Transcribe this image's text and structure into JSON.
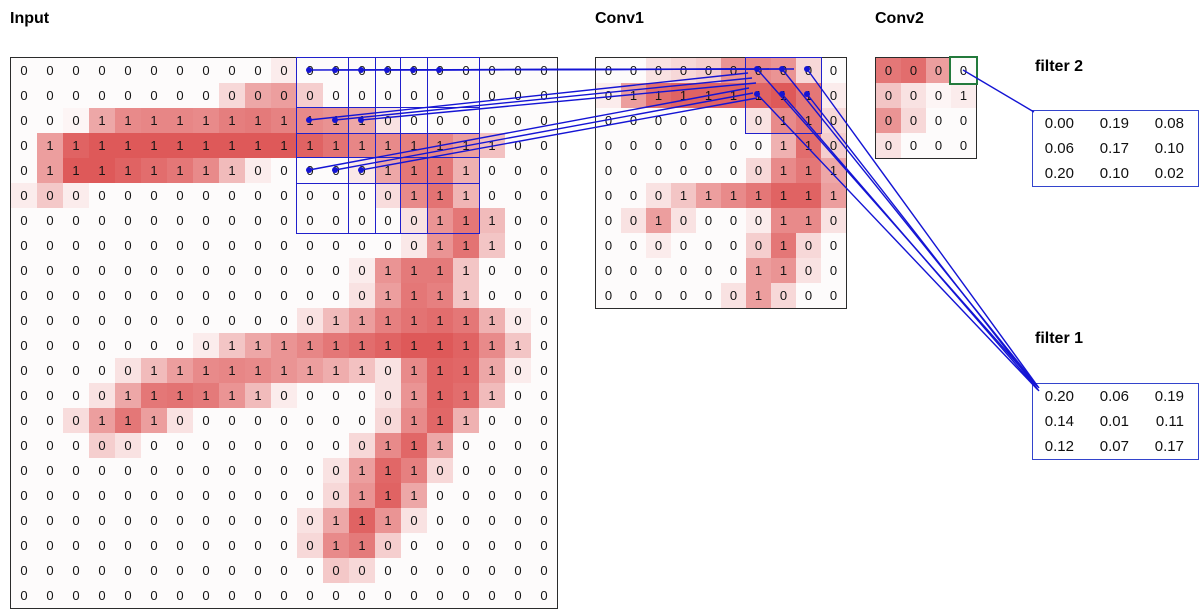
{
  "titles": {
    "input": "Input",
    "conv1": "Conv1",
    "conv2": "Conv2"
  },
  "filters": {
    "filter1": {
      "label": "filter 1",
      "rows": [
        [
          "0.20",
          "0.06",
          "0.19"
        ],
        [
          "0.14",
          "0.01",
          "0.11"
        ],
        [
          "0.12",
          "0.07",
          "0.17"
        ]
      ]
    },
    "filter2": {
      "label": "filter 2",
      "rows": [
        [
          "0.00",
          "0.19",
          "0.08"
        ],
        [
          "0.06",
          "0.17",
          "0.10"
        ],
        [
          "0.20",
          "0.10",
          "0.02"
        ]
      ]
    }
  },
  "colors": {
    "cell_red_base": "#d83c3c",
    "connection_blue": "#1414d4",
    "receptive_box_blue": "#2020cc",
    "selected_cell_green": "#237a3c"
  },
  "grids": {
    "input": {
      "rows": 22,
      "cols": 21,
      "values": [
        [
          0,
          0,
          0,
          0,
          0,
          0,
          0,
          0,
          0,
          0,
          0,
          0,
          0,
          0,
          0,
          0,
          0,
          0,
          0,
          0,
          0
        ],
        [
          0,
          0,
          0,
          0,
          0,
          0,
          0,
          0,
          0,
          0,
          0,
          0,
          0,
          0,
          0,
          0,
          0,
          0,
          0,
          0,
          0
        ],
        [
          0,
          0,
          0,
          1,
          1,
          1,
          1,
          1,
          1,
          1,
          1,
          1,
          1,
          1,
          0,
          0,
          0,
          0,
          0,
          0,
          0
        ],
        [
          0,
          1,
          1,
          1,
          1,
          1,
          1,
          1,
          1,
          1,
          1,
          1,
          1,
          1,
          1,
          1,
          1,
          1,
          1,
          0,
          0
        ],
        [
          0,
          1,
          1,
          1,
          1,
          1,
          1,
          1,
          1,
          0,
          0,
          0,
          0,
          0,
          1,
          1,
          1,
          1,
          0,
          0,
          0
        ],
        [
          0,
          0,
          0,
          0,
          0,
          0,
          0,
          0,
          0,
          0,
          0,
          0,
          0,
          0,
          0,
          1,
          1,
          1,
          0,
          0,
          0
        ],
        [
          0,
          0,
          0,
          0,
          0,
          0,
          0,
          0,
          0,
          0,
          0,
          0,
          0,
          0,
          0,
          0,
          1,
          1,
          1,
          0,
          0
        ],
        [
          0,
          0,
          0,
          0,
          0,
          0,
          0,
          0,
          0,
          0,
          0,
          0,
          0,
          0,
          0,
          0,
          1,
          1,
          1,
          0,
          0
        ],
        [
          0,
          0,
          0,
          0,
          0,
          0,
          0,
          0,
          0,
          0,
          0,
          0,
          0,
          0,
          1,
          1,
          1,
          1,
          0,
          0,
          0
        ],
        [
          0,
          0,
          0,
          0,
          0,
          0,
          0,
          0,
          0,
          0,
          0,
          0,
          0,
          0,
          1,
          1,
          1,
          1,
          0,
          0,
          0
        ],
        [
          0,
          0,
          0,
          0,
          0,
          0,
          0,
          0,
          0,
          0,
          0,
          0,
          1,
          1,
          1,
          1,
          1,
          1,
          1,
          0,
          0
        ],
        [
          0,
          0,
          0,
          0,
          0,
          0,
          0,
          0,
          1,
          1,
          1,
          1,
          1,
          1,
          1,
          1,
          1,
          1,
          1,
          1,
          0
        ],
        [
          0,
          0,
          0,
          0,
          0,
          1,
          1,
          1,
          1,
          1,
          1,
          1,
          1,
          1,
          0,
          1,
          1,
          1,
          1,
          0,
          0
        ],
        [
          0,
          0,
          0,
          0,
          1,
          1,
          1,
          1,
          1,
          1,
          0,
          0,
          0,
          0,
          0,
          1,
          1,
          1,
          1,
          0,
          0
        ],
        [
          0,
          0,
          0,
          1,
          1,
          1,
          0,
          0,
          0,
          0,
          0,
          0,
          0,
          0,
          0,
          1,
          1,
          1,
          0,
          0,
          0
        ],
        [
          0,
          0,
          0,
          0,
          0,
          0,
          0,
          0,
          0,
          0,
          0,
          0,
          0,
          0,
          1,
          1,
          1,
          0,
          0,
          0,
          0
        ],
        [
          0,
          0,
          0,
          0,
          0,
          0,
          0,
          0,
          0,
          0,
          0,
          0,
          0,
          1,
          1,
          1,
          0,
          0,
          0,
          0,
          0
        ],
        [
          0,
          0,
          0,
          0,
          0,
          0,
          0,
          0,
          0,
          0,
          0,
          0,
          0,
          1,
          1,
          1,
          0,
          0,
          0,
          0,
          0
        ],
        [
          0,
          0,
          0,
          0,
          0,
          0,
          0,
          0,
          0,
          0,
          0,
          0,
          1,
          1,
          1,
          0,
          0,
          0,
          0,
          0,
          0
        ],
        [
          0,
          0,
          0,
          0,
          0,
          0,
          0,
          0,
          0,
          0,
          0,
          0,
          1,
          1,
          0,
          0,
          0,
          0,
          0,
          0,
          0
        ],
        [
          0,
          0,
          0,
          0,
          0,
          0,
          0,
          0,
          0,
          0,
          0,
          0,
          0,
          0,
          0,
          0,
          0,
          0,
          0,
          0,
          0
        ],
        [
          0,
          0,
          0,
          0,
          0,
          0,
          0,
          0,
          0,
          0,
          0,
          0,
          0,
          0,
          0,
          0,
          0,
          0,
          0,
          0,
          0
        ]
      ],
      "intensity": [
        [
          0,
          0,
          0,
          0,
          0,
          0,
          0,
          0,
          0,
          0,
          0.1,
          0,
          0,
          0,
          0,
          0,
          0,
          0,
          0,
          0,
          0
        ],
        [
          0,
          0,
          0,
          0,
          0,
          0,
          0,
          0,
          0.2,
          0.45,
          0.5,
          0.25,
          0,
          0,
          0,
          0,
          0,
          0,
          0,
          0,
          0
        ],
        [
          0,
          0,
          0.05,
          0.45,
          0.6,
          0.62,
          0.62,
          0.6,
          0.66,
          0.68,
          0.64,
          0.6,
          0.56,
          0.45,
          0.15,
          0,
          0,
          0,
          0,
          0,
          0
        ],
        [
          0,
          0.5,
          0.8,
          0.85,
          0.85,
          0.85,
          0.85,
          0.85,
          0.85,
          0.85,
          0.85,
          0.8,
          0.72,
          0.62,
          0.6,
          0.65,
          0.62,
          0.5,
          0.32,
          0,
          0
        ],
        [
          0,
          0.5,
          0.85,
          0.85,
          0.8,
          0.75,
          0.7,
          0.6,
          0.35,
          0.1,
          0,
          0,
          0,
          0.12,
          0.45,
          0.7,
          0.7,
          0.4,
          0,
          0,
          0
        ],
        [
          0.1,
          0.28,
          0.1,
          0,
          0,
          0,
          0,
          0,
          0,
          0,
          0,
          0,
          0,
          0,
          0.18,
          0.6,
          0.72,
          0.38,
          0,
          0,
          0
        ],
        [
          0,
          0,
          0,
          0,
          0,
          0,
          0,
          0,
          0,
          0,
          0,
          0,
          0,
          0,
          0,
          0.15,
          0.55,
          0.7,
          0.35,
          0,
          0
        ],
        [
          0,
          0,
          0,
          0,
          0,
          0,
          0,
          0,
          0,
          0,
          0,
          0,
          0,
          0,
          0,
          0.12,
          0.55,
          0.72,
          0.3,
          0,
          0
        ],
        [
          0,
          0,
          0,
          0,
          0,
          0,
          0,
          0,
          0,
          0,
          0,
          0,
          0,
          0.1,
          0.55,
          0.68,
          0.68,
          0.3,
          0,
          0,
          0
        ],
        [
          0,
          0,
          0,
          0,
          0,
          0,
          0,
          0,
          0,
          0,
          0,
          0,
          0,
          0.15,
          0.5,
          0.7,
          0.65,
          0.3,
          0,
          0,
          0
        ],
        [
          0,
          0,
          0,
          0,
          0,
          0,
          0,
          0,
          0,
          0,
          0,
          0.15,
          0.35,
          0.5,
          0.65,
          0.72,
          0.75,
          0.7,
          0.4,
          0.1,
          0
        ],
        [
          0,
          0,
          0,
          0,
          0,
          0,
          0,
          0.1,
          0.3,
          0.45,
          0.55,
          0.62,
          0.7,
          0.75,
          0.8,
          0.85,
          0.85,
          0.8,
          0.6,
          0.3,
          0
        ],
        [
          0,
          0,
          0,
          0,
          0.15,
          0.35,
          0.5,
          0.6,
          0.62,
          0.6,
          0.55,
          0.5,
          0.42,
          0.32,
          0.15,
          0.6,
          0.8,
          0.78,
          0.45,
          0.1,
          0
        ],
        [
          0,
          0,
          0,
          0.15,
          0.45,
          0.7,
          0.72,
          0.68,
          0.55,
          0.35,
          0.1,
          0,
          0,
          0,
          0.15,
          0.55,
          0.8,
          0.75,
          0.35,
          0,
          0
        ],
        [
          0,
          0,
          0.18,
          0.5,
          0.7,
          0.5,
          0.15,
          0,
          0,
          0,
          0,
          0,
          0,
          0,
          0.2,
          0.6,
          0.78,
          0.4,
          0,
          0,
          0
        ],
        [
          0,
          0,
          0,
          0.25,
          0.15,
          0,
          0,
          0,
          0,
          0,
          0,
          0,
          0,
          0.2,
          0.6,
          0.78,
          0.45,
          0,
          0,
          0,
          0
        ],
        [
          0,
          0,
          0,
          0,
          0,
          0,
          0,
          0,
          0,
          0,
          0,
          0,
          0.15,
          0.5,
          0.78,
          0.65,
          0.2,
          0,
          0,
          0,
          0
        ],
        [
          0,
          0,
          0,
          0,
          0,
          0,
          0,
          0,
          0,
          0,
          0,
          0,
          0.2,
          0.55,
          0.8,
          0.45,
          0,
          0,
          0,
          0,
          0
        ],
        [
          0,
          0,
          0,
          0,
          0,
          0,
          0,
          0,
          0,
          0,
          0,
          0.15,
          0.45,
          0.8,
          0.55,
          0.15,
          0,
          0,
          0,
          0,
          0
        ],
        [
          0,
          0,
          0,
          0,
          0,
          0,
          0,
          0,
          0,
          0,
          0,
          0.2,
          0.6,
          0.68,
          0.25,
          0,
          0,
          0,
          0,
          0,
          0
        ],
        [
          0,
          0,
          0,
          0,
          0,
          0,
          0,
          0,
          0,
          0,
          0,
          0,
          0.28,
          0.2,
          0,
          0,
          0,
          0,
          0,
          0,
          0
        ],
        [
          0,
          0,
          0,
          0,
          0,
          0,
          0,
          0,
          0,
          0,
          0,
          0,
          0,
          0,
          0,
          0,
          0,
          0,
          0,
          0,
          0
        ]
      ]
    },
    "conv1": {
      "rows": 10,
      "cols": 10,
      "values": [
        [
          0,
          0,
          0,
          0,
          0,
          0,
          0,
          0,
          0,
          0
        ],
        [
          0,
          1,
          1,
          1,
          1,
          1,
          1,
          1,
          1,
          0
        ],
        [
          0,
          0,
          0,
          0,
          0,
          0,
          0,
          1,
          1,
          0
        ],
        [
          0,
          0,
          0,
          0,
          0,
          0,
          0,
          1,
          1,
          0
        ],
        [
          0,
          0,
          0,
          0,
          0,
          0,
          0,
          1,
          1,
          1
        ],
        [
          0,
          0,
          0,
          1,
          1,
          1,
          1,
          1,
          1,
          1
        ],
        [
          0,
          0,
          1,
          0,
          0,
          0,
          0,
          1,
          1,
          0
        ],
        [
          0,
          0,
          0,
          0,
          0,
          0,
          0,
          1,
          0,
          0
        ],
        [
          0,
          0,
          0,
          0,
          0,
          0,
          1,
          1,
          0,
          0
        ],
        [
          0,
          0,
          0,
          0,
          0,
          0,
          1,
          0,
          0,
          0
        ]
      ],
      "intensity": [
        [
          0,
          0,
          0.15,
          0.2,
          0.25,
          0.55,
          0.6,
          0.55,
          0.2,
          0
        ],
        [
          0.1,
          0.5,
          0.75,
          0.8,
          0.8,
          0.8,
          0.8,
          0.85,
          0.7,
          0.1
        ],
        [
          0,
          0,
          0,
          0,
          0,
          0,
          0.15,
          0.6,
          0.7,
          0.2
        ],
        [
          0,
          0,
          0,
          0,
          0,
          0,
          0,
          0.4,
          0.75,
          0.25
        ],
        [
          0,
          0,
          0,
          0,
          0,
          0,
          0.2,
          0.6,
          0.7,
          0.45
        ],
        [
          0,
          0,
          0.15,
          0.3,
          0.5,
          0.6,
          0.7,
          0.8,
          0.8,
          0.5
        ],
        [
          0,
          0.15,
          0.5,
          0.15,
          0,
          0,
          0.1,
          0.6,
          0.6,
          0.15
        ],
        [
          0,
          0,
          0.1,
          0,
          0,
          0,
          0.25,
          0.7,
          0.2,
          0
        ],
        [
          0,
          0,
          0,
          0,
          0,
          0,
          0.5,
          0.55,
          0.15,
          0
        ],
        [
          0,
          0,
          0,
          0,
          0,
          0.15,
          0.5,
          0.2,
          0,
          0
        ]
      ]
    },
    "conv2": {
      "rows": 4,
      "cols": 4,
      "values": [
        [
          0,
          0,
          0,
          0
        ],
        [
          0,
          0,
          0,
          1
        ],
        [
          0,
          0,
          0,
          0
        ],
        [
          0,
          0,
          0,
          0
        ]
      ],
      "intensity": [
        [
          0.7,
          0.75,
          0.5,
          0
        ],
        [
          0.3,
          0.15,
          0.05,
          0.1
        ],
        [
          0.55,
          0.2,
          0,
          0
        ],
        [
          0.15,
          0,
          0,
          0
        ]
      ]
    }
  }
}
